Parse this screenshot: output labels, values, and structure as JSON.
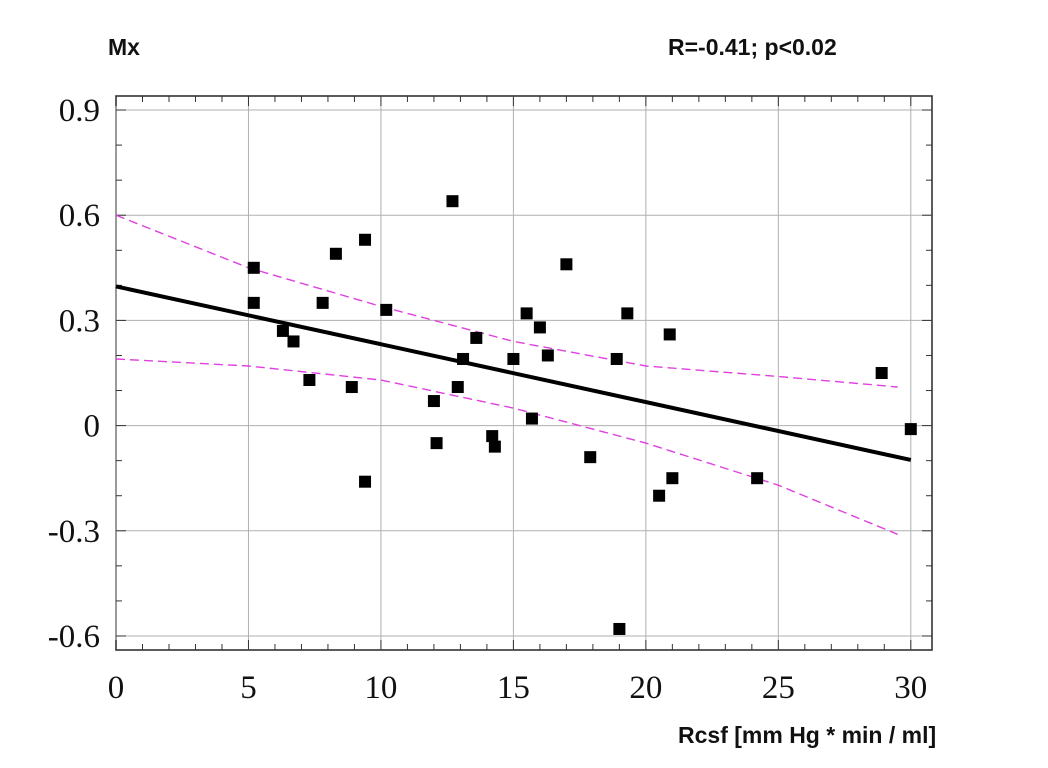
{
  "chart_data": {
    "type": "scatter",
    "title": "",
    "ylabel": "Mx",
    "xlabel": "Rcsf [mm Hg * min / ml]",
    "annotation": "R=-0.41; p<0.02",
    "xlim": [
      0,
      30.8
    ],
    "ylim": [
      -0.64,
      0.94
    ],
    "xticks": [
      "0",
      "5",
      "10",
      "15",
      "20",
      "25",
      "30"
    ],
    "xtick_values": [
      0,
      5,
      10,
      15,
      20,
      25,
      30
    ],
    "yticks": [
      "0.9",
      "0.6",
      "0.3",
      "0",
      "-0.3",
      "-0.6"
    ],
    "ytick_values": [
      0.9,
      0.6,
      0.3,
      0,
      -0.3,
      -0.6
    ],
    "grid": true,
    "points": [
      {
        "x": 5.2,
        "y": 0.45
      },
      {
        "x": 5.2,
        "y": 0.35
      },
      {
        "x": 6.3,
        "y": 0.27
      },
      {
        "x": 6.7,
        "y": 0.24
      },
      {
        "x": 7.3,
        "y": 0.13
      },
      {
        "x": 7.8,
        "y": 0.35
      },
      {
        "x": 8.3,
        "y": 0.49
      },
      {
        "x": 8.9,
        "y": 0.11
      },
      {
        "x": 9.4,
        "y": 0.53
      },
      {
        "x": 9.4,
        "y": -0.16
      },
      {
        "x": 10.2,
        "y": 0.33
      },
      {
        "x": 12.0,
        "y": 0.07
      },
      {
        "x": 12.1,
        "y": -0.05
      },
      {
        "x": 12.7,
        "y": 0.64
      },
      {
        "x": 12.9,
        "y": 0.11
      },
      {
        "x": 13.1,
        "y": 0.19
      },
      {
        "x": 13.6,
        "y": 0.25
      },
      {
        "x": 14.2,
        "y": -0.03
      },
      {
        "x": 14.3,
        "y": -0.06
      },
      {
        "x": 15.0,
        "y": 0.19
      },
      {
        "x": 15.5,
        "y": 0.32
      },
      {
        "x": 15.7,
        "y": 0.02
      },
      {
        "x": 16.0,
        "y": 0.28
      },
      {
        "x": 16.3,
        "y": 0.2
      },
      {
        "x": 17.0,
        "y": 0.46
      },
      {
        "x": 17.9,
        "y": -0.09
      },
      {
        "x": 18.9,
        "y": 0.19
      },
      {
        "x": 19.0,
        "y": -0.58
      },
      {
        "x": 19.3,
        "y": 0.32
      },
      {
        "x": 20.5,
        "y": -0.2
      },
      {
        "x": 20.9,
        "y": 0.26
      },
      {
        "x": 21.0,
        "y": -0.15
      },
      {
        "x": 24.2,
        "y": -0.15
      },
      {
        "x": 28.9,
        "y": 0.15
      },
      {
        "x": 30.0,
        "y": -0.01
      }
    ],
    "regression": {
      "x0": 0,
      "y0": 0.397,
      "x1": 30,
      "y1": -0.098
    },
    "confidence_upper": [
      [
        0,
        0.6
      ],
      [
        5,
        0.45
      ],
      [
        10,
        0.34
      ],
      [
        15,
        0.24
      ],
      [
        20,
        0.17
      ],
      [
        25,
        0.14
      ],
      [
        29.5,
        0.11
      ]
    ],
    "confidence_lower": [
      [
        0,
        0.19
      ],
      [
        5,
        0.17
      ],
      [
        10,
        0.13
      ],
      [
        15,
        0.05
      ],
      [
        20,
        -0.05
      ],
      [
        25,
        -0.17
      ],
      [
        29.5,
        -0.31
      ]
    ],
    "colors": {
      "points": "#000000",
      "regression": "#000000",
      "confidence": "#e040e0",
      "grid": "#b0b0b0",
      "frame": "#333333"
    }
  }
}
